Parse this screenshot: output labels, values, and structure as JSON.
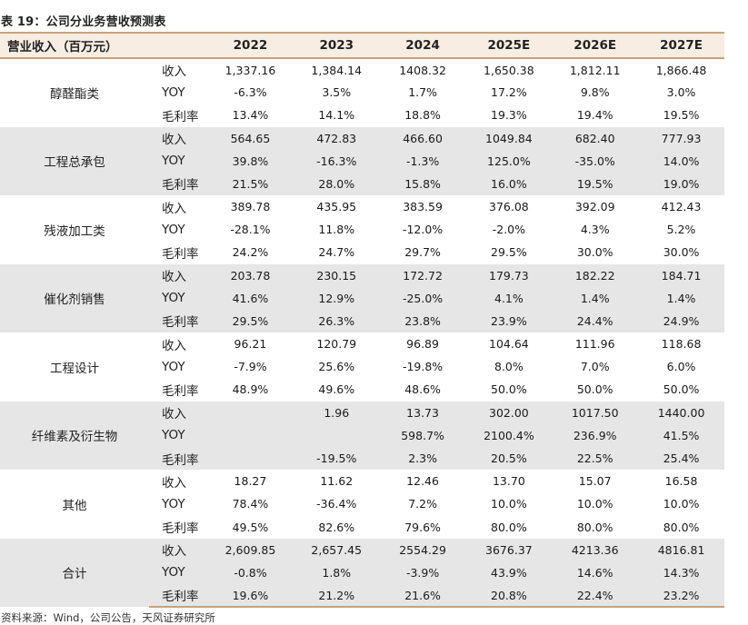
{
  "title": "表 19：公司分业务营收预测表",
  "header": {
    "segment_label": "营业收入（百万元）",
    "years": [
      "2022",
      "2023",
      "2024",
      "2025E",
      "2026E",
      "2027E"
    ]
  },
  "groups": [
    {
      "name": "醇醛酯类",
      "rows": [
        {
          "metric": "收入",
          "values": [
            "1,337.16",
            "1,384.14",
            "1408.32",
            "1,650.38",
            "1,812.11",
            "1,866.48"
          ]
        },
        {
          "metric": "YOY",
          "values": [
            "-6.3%",
            "3.5%",
            "1.7%",
            "17.2%",
            "9.8%",
            "3.0%"
          ]
        },
        {
          "metric": "毛利率",
          "values": [
            "13.4%",
            "14.1%",
            "18.8%",
            "19.3%",
            "19.4%",
            "19.5%"
          ]
        }
      ]
    },
    {
      "name": "工程总承包",
      "rows": [
        {
          "metric": "收入",
          "values": [
            "564.65",
            "472.83",
            "466.60",
            "1049.84",
            "682.40",
            "777.93"
          ]
        },
        {
          "metric": "YOY",
          "values": [
            "39.8%",
            "-16.3%",
            "-1.3%",
            "125.0%",
            "-35.0%",
            "14.0%"
          ]
        },
        {
          "metric": "毛利率",
          "values": [
            "21.5%",
            "28.0%",
            "15.8%",
            "16.0%",
            "19.5%",
            "19.0%"
          ]
        }
      ]
    },
    {
      "name": "残液加工类",
      "rows": [
        {
          "metric": "收入",
          "values": [
            "389.78",
            "435.95",
            "383.59",
            "376.08",
            "392.09",
            "412.43"
          ]
        },
        {
          "metric": "YOY",
          "values": [
            "-28.1%",
            "11.8%",
            "-12.0%",
            "-2.0%",
            "4.3%",
            "5.2%"
          ]
        },
        {
          "metric": "毛利率",
          "values": [
            "24.2%",
            "24.7%",
            "29.7%",
            "29.5%",
            "30.0%",
            "30.0%"
          ]
        }
      ]
    },
    {
      "name": "催化剂销售",
      "rows": [
        {
          "metric": "收入",
          "values": [
            "203.78",
            "230.15",
            "172.72",
            "179.73",
            "182.22",
            "184.71"
          ]
        },
        {
          "metric": "YOY",
          "values": [
            "41.6%",
            "12.9%",
            "-25.0%",
            "4.1%",
            "1.4%",
            "1.4%"
          ]
        },
        {
          "metric": "毛利率",
          "values": [
            "29.5%",
            "26.3%",
            "23.8%",
            "23.9%",
            "24.4%",
            "24.9%"
          ]
        }
      ]
    },
    {
      "name": "工程设计",
      "rows": [
        {
          "metric": "收入",
          "values": [
            "96.21",
            "120.79",
            "96.89",
            "104.64",
            "111.96",
            "118.68"
          ]
        },
        {
          "metric": "YOY",
          "values": [
            "-7.9%",
            "25.6%",
            "-19.8%",
            "8.0%",
            "7.0%",
            "6.0%"
          ]
        },
        {
          "metric": "毛利率",
          "values": [
            "48.9%",
            "49.6%",
            "48.6%",
            "50.0%",
            "50.0%",
            "50.0%"
          ]
        }
      ]
    },
    {
      "name": "纤维素及衍生物",
      "rows": [
        {
          "metric": "收入",
          "values": [
            "",
            "1.96",
            "13.73",
            "302.00",
            "1017.50",
            "1440.00"
          ]
        },
        {
          "metric": "YOY",
          "values": [
            "",
            "",
            "598.7%",
            "2100.4%",
            "236.9%",
            "41.5%"
          ]
        },
        {
          "metric": "毛利率",
          "values": [
            "",
            "-19.5%",
            "2.3%",
            "20.5%",
            "22.5%",
            "25.4%"
          ]
        }
      ]
    },
    {
      "name": "其他",
      "rows": [
        {
          "metric": "收入",
          "values": [
            "18.27",
            "11.62",
            "12.46",
            "13.70",
            "15.07",
            "16.58"
          ]
        },
        {
          "metric": "YOY",
          "values": [
            "78.4%",
            "-36.4%",
            "7.2%",
            "10.0%",
            "10.0%",
            "10.0%"
          ]
        },
        {
          "metric": "毛利率",
          "values": [
            "49.5%",
            "82.6%",
            "79.6%",
            "80.0%",
            "80.0%",
            "80.0%"
          ]
        }
      ]
    },
    {
      "name": "合计",
      "rows": [
        {
          "metric": "收入",
          "values": [
            "2,609.85",
            "2,657.45",
            "2554.29",
            "3676.37",
            "4213.36",
            "4816.81"
          ]
        },
        {
          "metric": "YOY",
          "values": [
            "-0.8%",
            "1.8%",
            "-3.9%",
            "43.9%",
            "14.6%",
            "14.3%"
          ]
        },
        {
          "metric": "毛利率",
          "values": [
            "19.6%",
            "21.2%",
            "21.6%",
            "20.8%",
            "22.4%",
            "23.2%"
          ]
        }
      ]
    }
  ],
  "source": "资料来源：Wind，公司公告，天风证券研究所"
}
